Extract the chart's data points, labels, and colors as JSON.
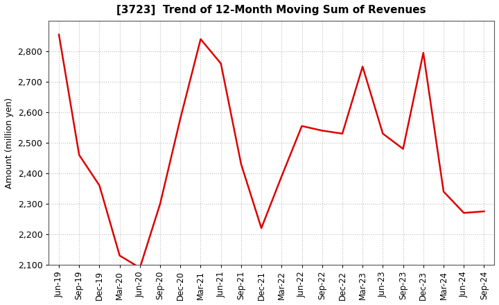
{
  "title": "[3723]  Trend of 12-Month Moving Sum of Revenues",
  "ylabel": "Amount (million yen)",
  "line_color": "#dd0000",
  "background_color": "#ffffff",
  "plot_bg_color": "#ffffff",
  "grid_color": "#bbbbbb",
  "ylim": [
    2100,
    2900
  ],
  "yticks": [
    2100,
    2200,
    2300,
    2400,
    2500,
    2600,
    2700,
    2800
  ],
  "labels": [
    "Jun-19",
    "Sep-19",
    "Dec-19",
    "Mar-20",
    "Jun-20",
    "Sep-20",
    "Dec-20",
    "Mar-21",
    "Jun-21",
    "Sep-21",
    "Dec-21",
    "Mar-22",
    "Jun-22",
    "Sep-22",
    "Dec-22",
    "Mar-23",
    "Jun-23",
    "Sep-23",
    "Dec-23",
    "Mar-24",
    "Jun-24",
    "Sep-24"
  ],
  "values": [
    2855,
    2460,
    2360,
    2130,
    2090,
    2300,
    2580,
    2840,
    2760,
    2430,
    2220,
    2390,
    2555,
    2540,
    2530,
    2750,
    2530,
    2480,
    2795,
    2340,
    2270,
    2275
  ]
}
